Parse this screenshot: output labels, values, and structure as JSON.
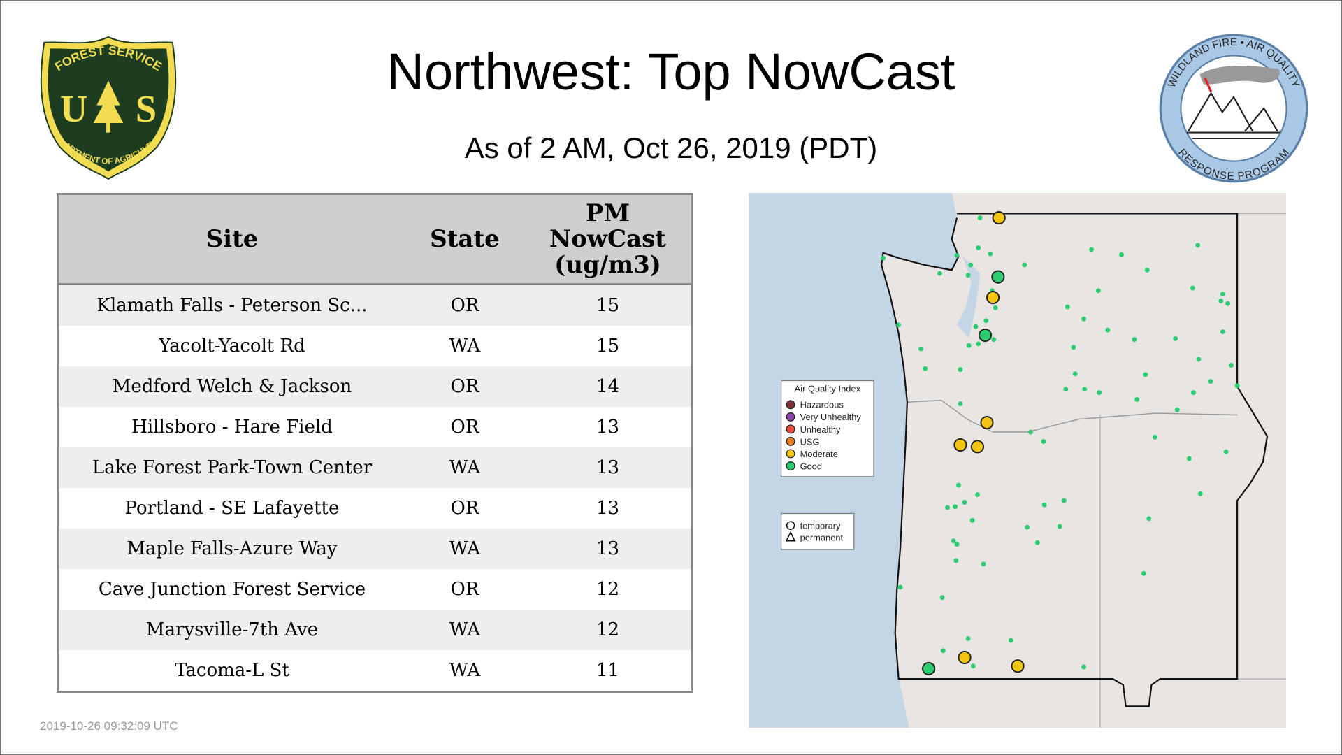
{
  "header": {
    "title": "Northwest: Top NowCast",
    "subtitle": "As of  2 AM, Oct 26, 2019 (PDT)"
  },
  "logos": {
    "left": {
      "top_text": "FOREST SERVICE",
      "letters": "U S",
      "bottom_text": "DEPARTMENT OF AGRICULTURE"
    },
    "right": {
      "top_text": "WILDLAND FIRE • AIR QUALITY",
      "bottom_text": "RESPONSE PROGRAM"
    }
  },
  "table": {
    "headers": [
      "Site",
      "State",
      "PM\nNowCast\n(ug/m3)"
    ],
    "rows": [
      {
        "site": "Klamath Falls - Peterson Sc...",
        "state": "OR",
        "value": "15"
      },
      {
        "site": "Yacolt-Yacolt Rd",
        "state": "WA",
        "value": "15"
      },
      {
        "site": "Medford Welch & Jackson",
        "state": "OR",
        "value": "14"
      },
      {
        "site": "Hillsboro - Hare Field",
        "state": "OR",
        "value": "13"
      },
      {
        "site": "Lake Forest Park-Town Center",
        "state": "WA",
        "value": "13"
      },
      {
        "site": "Portland - SE Lafayette",
        "state": "OR",
        "value": "13"
      },
      {
        "site": "Maple Falls-Azure Way",
        "state": "WA",
        "value": "13"
      },
      {
        "site": "Cave Junction Forest Service",
        "state": "OR",
        "value": "12"
      },
      {
        "site": "Marysville-7th Ave",
        "state": "WA",
        "value": "12"
      },
      {
        "site": "Tacoma-L St",
        "state": "WA",
        "value": "11"
      }
    ]
  },
  "map": {
    "legend": {
      "title": "Air Quality Index",
      "items": [
        {
          "label": "Hazardous",
          "color": "#7e3034"
        },
        {
          "label": "Very Unhealthy",
          "color": "#8e44ad"
        },
        {
          "label": "Unhealthy",
          "color": "#e74c3c"
        },
        {
          "label": "USG",
          "color": "#e67e22"
        },
        {
          "label": "Moderate",
          "color": "#f1c40f"
        },
        {
          "label": "Good",
          "color": "#2ecc71"
        }
      ]
    },
    "shape_legend": {
      "temporary": "temporary",
      "permanent": "permanent"
    }
  },
  "footer": {
    "timestamp": "2019-10-26 09:32:09 UTC"
  }
}
